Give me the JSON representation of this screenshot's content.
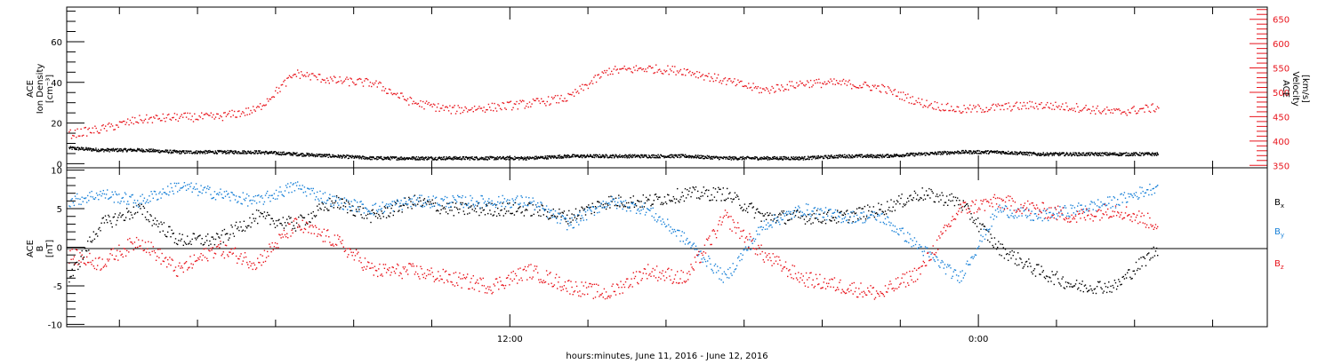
{
  "chart_data": [
    {
      "type": "scatter",
      "panel": "top",
      "ylabel_left": [
        "ACE",
        "Ion Density",
        "[cm⁻³]"
      ],
      "ylabel_right": [
        "ACE",
        "Velocity",
        "[km/s]"
      ],
      "ylim_left": [
        -2,
        77
      ],
      "ylim_right": [
        345,
        675
      ],
      "yticks_left": [
        "0",
        "20",
        "40",
        "60"
      ],
      "yticks_right": [
        "350",
        "400",
        "450",
        "500",
        "550",
        "600",
        "650"
      ],
      "right_axis_color": "#e8141c",
      "x_hours_range": [
        -11.35,
        19.4
      ],
      "series": [
        {
          "axis": "left",
          "color": "#000000",
          "x": [
            -11.3,
            -10.5,
            -9.5,
            -8.5,
            -7.5,
            -6.5,
            -5.5,
            -4.5,
            -3.5,
            -2.5,
            -1.5,
            -0.5,
            0.5,
            1.5,
            2.5,
            3.5,
            4.5,
            5.5,
            6.5,
            7.5,
            8.5,
            9.5,
            10.5,
            11.5,
            12.5,
            13.5,
            14.5,
            15.5,
            16.6
          ],
          "y": [
            8,
            7,
            7,
            6,
            6,
            6,
            5,
            4,
            3,
            3,
            3,
            3,
            3,
            4,
            4,
            4,
            4,
            3,
            3,
            3,
            4,
            4,
            5,
            6,
            6,
            5,
            5,
            5,
            5
          ]
        },
        {
          "axis": "right",
          "color": "#e8141c",
          "x": [
            -11.3,
            -10.5,
            -9.5,
            -8.5,
            -7.5,
            -6.5,
            -5.5,
            -4.5,
            -3.5,
            -2.5,
            -1.5,
            -0.5,
            0.5,
            1.5,
            2.5,
            3.5,
            4.5,
            5.5,
            6.5,
            7.5,
            8.5,
            9.5,
            10.5,
            11.5,
            12.5,
            13.5,
            14.5,
            15.5,
            16.6
          ],
          "y": [
            415,
            425,
            445,
            450,
            450,
            465,
            540,
            525,
            520,
            480,
            465,
            470,
            478,
            490,
            545,
            550,
            545,
            525,
            505,
            520,
            520,
            510,
            480,
            465,
            470,
            475,
            470,
            460,
            470
          ]
        }
      ]
    },
    {
      "type": "scatter",
      "panel": "bottom",
      "ylabel": [
        "ACE",
        "B",
        "[nT]"
      ],
      "ylim": [
        -10.3,
        10.3
      ],
      "yticks": [
        "-10",
        "-5",
        "0",
        "5",
        "10"
      ],
      "x_hours_range": [
        -11.35,
        19.4
      ],
      "xticks": [
        {
          "x": 0,
          "label": "12:00"
        },
        {
          "x": 12,
          "label": "0:00"
        }
      ],
      "xlabel": "hours:minutes, June 11, 2016 - June 12, 2016",
      "series": [
        {
          "name": "Bx",
          "sub": "x",
          "color": "#000000",
          "x": [
            -11.3,
            -10.5,
            -9.5,
            -8.5,
            -7.5,
            -6.5,
            -5.5,
            -4.5,
            -3.5,
            -2.5,
            -1.5,
            -0.5,
            0.5,
            1.5,
            2.5,
            3.5,
            4.5,
            5.5,
            6.5,
            7.5,
            8.5,
            9.5,
            10.5,
            11.5,
            12.5,
            13.5,
            14.5,
            15.5,
            16.6
          ],
          "y": [
            -4,
            3,
            5,
            1,
            1,
            4,
            3,
            6,
            4,
            6,
            5,
            5,
            5,
            4,
            6,
            6,
            7,
            7,
            4,
            4,
            4,
            5,
            7,
            6,
            0,
            -3,
            -5,
            -5,
            0
          ]
        },
        {
          "name": "By",
          "sub": "y",
          "color": "#1a82d8",
          "x": [
            -11.3,
            -10.5,
            -9.5,
            -8.5,
            -7.5,
            -6.5,
            -5.5,
            -4.5,
            -3.5,
            -2.5,
            -1.5,
            -0.5,
            0.5,
            1.5,
            2.5,
            3.5,
            4.5,
            5.5,
            6.5,
            7.5,
            8.5,
            9.5,
            10.5,
            11.5,
            12.5,
            13.5,
            14.5,
            15.5,
            16.6
          ],
          "y": [
            6,
            7,
            6,
            8,
            7,
            6,
            8,
            6,
            5,
            6,
            6,
            6,
            6,
            3,
            6,
            5,
            1,
            -4,
            3,
            5,
            4,
            4,
            0,
            -4,
            5,
            4,
            5,
            6,
            8
          ]
        },
        {
          "name": "Bz",
          "sub": "z",
          "color": "#e8141c",
          "x": [
            -11.3,
            -10.5,
            -9.5,
            -8.5,
            -7.5,
            -6.5,
            -5.5,
            -4.5,
            -3.5,
            -2.5,
            -1.5,
            -0.5,
            0.5,
            1.5,
            2.5,
            3.5,
            4.5,
            5.5,
            6.5,
            7.5,
            8.5,
            9.5,
            10.5,
            11.5,
            12.5,
            13.5,
            14.5,
            15.5,
            16.6
          ],
          "y": [
            -1,
            -2,
            1,
            -3,
            0,
            -2,
            3,
            1,
            -3,
            -3,
            -4,
            -5,
            -3,
            -5,
            -6,
            -3,
            -4,
            4,
            -1,
            -4,
            -5,
            -6,
            -3,
            5,
            6,
            5,
            4,
            5,
            3
          ]
        }
      ]
    }
  ]
}
